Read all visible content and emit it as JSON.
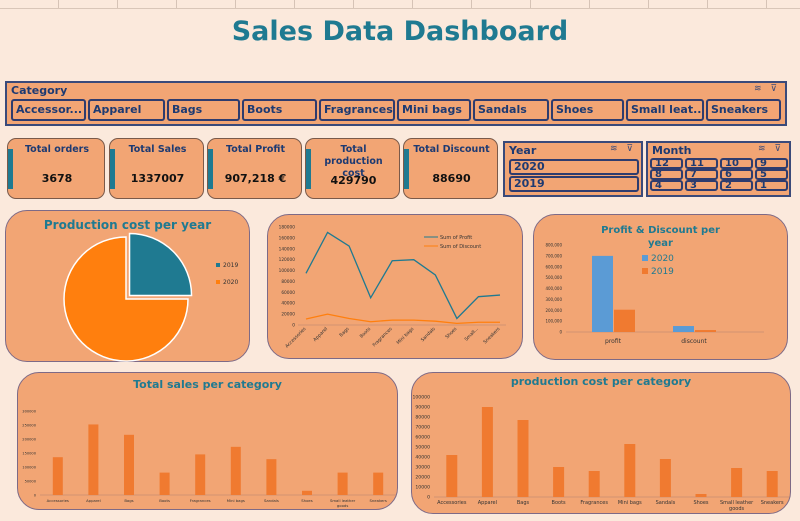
{
  "title": "Sales Data Dashboard",
  "category_slicer": {
    "label": "Category",
    "items": [
      "Accessor...",
      "Apparel",
      "Bags",
      "Boots",
      "Fragrances",
      "Mini bags",
      "Sandals",
      "Shoes",
      "Small leat...",
      "Sneakers"
    ]
  },
  "kpis": [
    {
      "label": "Total orders",
      "value": "3678"
    },
    {
      "label": "Total Sales",
      "value": "1337007"
    },
    {
      "label": "Total Profit",
      "value": "907,218 €"
    },
    {
      "label": "Total production cost",
      "value": "429790"
    },
    {
      "label": "Total Discount",
      "value": "88690"
    }
  ],
  "year_slicer": {
    "label": "Year",
    "items": [
      "2020",
      "2019"
    ]
  },
  "month_slicer": {
    "label": "Month",
    "items": [
      "12",
      "11",
      "10",
      "9",
      "8",
      "7",
      "6",
      "5",
      "4",
      "3",
      "2",
      "1"
    ]
  },
  "colors": {
    "teal": "#1f7a91",
    "orange": "#ff7f0e",
    "panel": "#f2a574",
    "blue": "#5b9bd5",
    "bar_orange": "#f07a30"
  },
  "chart_data": [
    {
      "type": "pie",
      "title": "Production cost per year",
      "categories": [
        "2019",
        "2020"
      ],
      "values": [
        25,
        75
      ],
      "legend": "right"
    },
    {
      "type": "line",
      "title": "",
      "categories": [
        "Accessories",
        "Apparel",
        "Bags",
        "Boots",
        "Fragrances",
        "Mini bags",
        "Sandals",
        "Shoes",
        "Small...",
        "Sneakers"
      ],
      "series": [
        {
          "name": "Sum of Profit",
          "values": [
            95000,
            170000,
            145000,
            50000,
            118000,
            120000,
            92000,
            12000,
            52000,
            55000
          ]
        },
        {
          "name": "Sum of Discount",
          "values": [
            11000,
            20000,
            12000,
            6000,
            9000,
            9000,
            7000,
            3000,
            5000,
            5000
          ]
        }
      ],
      "ylim": [
        0,
        180000
      ],
      "yticks": [
        "0",
        "20000",
        "40000",
        "60000",
        "80000",
        "100000",
        "120000",
        "140000",
        "160000",
        "180000"
      ],
      "legend": "top-right"
    },
    {
      "type": "bar",
      "title": "Profit & Discount per year",
      "categories": [
        "profit",
        "discount"
      ],
      "series": [
        {
          "name": "2020",
          "values": [
            700000,
            55000
          ]
        },
        {
          "name": "2019",
          "values": [
            205000,
            18000
          ]
        }
      ],
      "ylim": [
        0,
        800000
      ],
      "yticks": [
        "0",
        "100,000",
        "200,000",
        "300,000",
        "400,000",
        "500,000",
        "600,000",
        "700,000",
        "800,000"
      ],
      "legend": "top-right"
    },
    {
      "type": "bar",
      "title": "Total sales per category",
      "categories": [
        "Accessories",
        "Apparel",
        "Bags",
        "Boots",
        "Fragrances",
        "Mini bags",
        "Sandals",
        "Shoes",
        "Small leather goods",
        "Sneakers"
      ],
      "values": [
        135000,
        252000,
        215000,
        80000,
        145000,
        172000,
        128000,
        15000,
        80000,
        80000
      ],
      "ylim": [
        0,
        300000
      ],
      "yticks": [
        "0",
        "50000",
        "100000",
        "150000",
        "200000",
        "250000",
        "300000"
      ]
    },
    {
      "type": "bar",
      "title": "production cost per category",
      "categories": [
        "Accessories",
        "Apparel",
        "Bags",
        "Boots",
        "Fragrances",
        "Mini bags",
        "Sandals",
        "Shoes",
        "Small leather goods",
        "Sneakers"
      ],
      "values": [
        42000,
        90000,
        77000,
        30000,
        26000,
        53000,
        38000,
        3000,
        29000,
        26000
      ],
      "ylim": [
        0,
        100000
      ],
      "yticks": [
        "0",
        "10000",
        "20000",
        "30000",
        "40000",
        "50000",
        "60000",
        "70000",
        "80000",
        "90000",
        "100000"
      ]
    }
  ]
}
